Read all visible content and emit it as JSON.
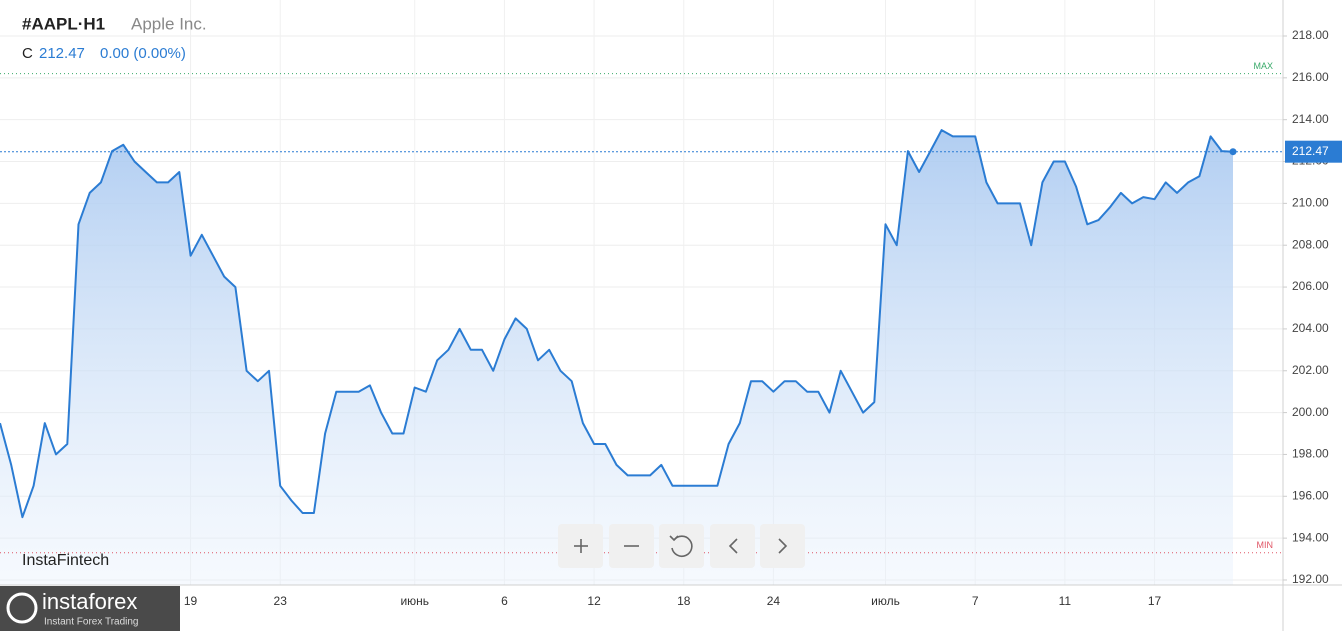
{
  "chart_data": {
    "type": "line",
    "title": "#AAPL·H1",
    "subtitle": "Apple Inc.",
    "ohlc_prefix": "C",
    "change": "0.00 (0.00%)",
    "max_label": "MAX",
    "min_label": "MIN",
    "max_line": 216.2,
    "min_line": 193.3,
    "watermark": "InstaFintech",
    "brand": "instaforex",
    "brand_tagline": "Instant Forex Trading",
    "categories": [
      null,
      null,
      null,
      null,
      null,
      null,
      null,
      null,
      null,
      null,
      null,
      null,
      null,
      null,
      null,
      null,
      null,
      "19",
      null,
      null,
      null,
      null,
      null,
      null,
      null,
      "23",
      null,
      null,
      null,
      null,
      null,
      null,
      null,
      null,
      null,
      null,
      null,
      "июнь",
      null,
      null,
      null,
      null,
      null,
      null,
      null,
      "6",
      null,
      null,
      null,
      null,
      null,
      null,
      null,
      "12",
      null,
      null,
      null,
      null,
      null,
      null,
      null,
      "18",
      null,
      null,
      null,
      null,
      null,
      null,
      null,
      "24",
      null,
      null,
      null,
      null,
      null,
      null,
      null,
      null,
      null,
      "июль",
      null,
      null,
      null,
      null,
      null,
      null,
      null,
      "7",
      null,
      null,
      null,
      null,
      null,
      null,
      null,
      "11",
      null,
      null,
      null,
      null,
      null,
      null,
      null,
      "17",
      null,
      null,
      null,
      null,
      null,
      null,
      null
    ],
    "series": [
      {
        "name": "AAPL",
        "color": "#2b7cd3",
        "values": [
          199.5,
          197.5,
          195,
          196.5,
          199.5,
          198,
          198.5,
          209,
          210.5,
          211,
          212.5,
          212.8,
          212,
          211.5,
          211,
          211,
          211.5,
          207.5,
          208.5,
          207.5,
          206.5,
          206,
          202,
          201.5,
          202,
          196.5,
          195.8,
          195.2,
          195.2,
          199,
          201,
          201,
          201,
          201.3,
          200,
          199,
          199,
          201.2,
          201,
          202.5,
          203,
          204,
          203,
          203,
          202,
          203.5,
          204.5,
          204,
          202.5,
          203,
          202,
          201.5,
          199.5,
          198.5,
          198.5,
          197.5,
          197,
          197,
          197,
          197.5,
          196.5,
          196.5,
          196.5,
          196.5,
          196.5,
          198.5,
          199.5,
          201.5,
          201.5,
          201,
          201.5,
          201.5,
          201,
          201,
          200,
          202,
          201,
          200,
          200.5,
          209,
          208,
          212.5,
          211.5,
          212.5,
          213.5,
          213.2,
          213.2,
          213.2,
          211,
          210,
          210,
          210,
          208,
          211,
          212,
          212,
          210.8,
          209,
          209.2,
          209.8,
          210.5,
          210,
          210.3,
          210.2,
          211,
          210.5,
          211,
          211.3,
          213.2,
          212.5,
          212.47
        ]
      }
    ],
    "ylim": [
      191.76,
      219.72
    ],
    "yticks": [
      {
        "value": 192,
        "label": "192.00"
      },
      {
        "value": 194,
        "label": "194.00"
      },
      {
        "value": 196,
        "label": "196.00"
      },
      {
        "value": 198,
        "label": "198.00"
      },
      {
        "value": 200,
        "label": "200.00"
      },
      {
        "value": 202,
        "label": "202.00"
      },
      {
        "value": 204,
        "label": "204.00"
      },
      {
        "value": 206,
        "label": "206.00"
      },
      {
        "value": 208,
        "label": "208.00"
      },
      {
        "value": 210,
        "label": "210.00"
      },
      {
        "value": 212,
        "label": "212.00"
      },
      {
        "value": 214,
        "label": "214.00"
      },
      {
        "value": 216,
        "label": "216.00"
      },
      {
        "value": 218,
        "label": "218.00"
      }
    ],
    "grid": true
  }
}
